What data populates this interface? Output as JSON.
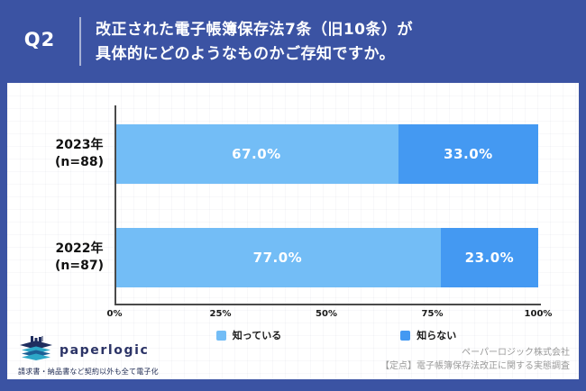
{
  "header": {
    "q_label": "Q2",
    "title_line1": "改正された電子帳簿保存法7条（旧10条）が",
    "title_line2": "具体的にどのようなものかご存知ですか。"
  },
  "chart_data": {
    "type": "bar",
    "orientation": "horizontal",
    "stacked": true,
    "categories": [
      {
        "label": "2023年",
        "sub": "(n=88)"
      },
      {
        "label": "2022年",
        "sub": "(n=87)"
      }
    ],
    "series": [
      {
        "name": "知っている",
        "color": "#73bdf6",
        "values": [
          67.0,
          77.0
        ]
      },
      {
        "name": "知らない",
        "color": "#4499f2",
        "values": [
          33.0,
          23.0
        ]
      }
    ],
    "xlim": [
      0,
      100
    ],
    "x_ticks": [
      "0%",
      "25%",
      "50%",
      "75%",
      "100%"
    ],
    "value_suffix": "%",
    "value_decimals": 1,
    "legend_position": "bottom",
    "grid": false
  },
  "footer": {
    "logo_text": "paperlogic",
    "logo_tagline": "請求書・納品書など契約以外も全て電子化",
    "credit_line1": "ペーパーロジック株式会社",
    "credit_line2": "【定点】電子帳簿保存法改正に関する実態調査"
  },
  "colors": {
    "page_background": "#3b53a3",
    "card_background": "#ffffff",
    "axis": "#4a4a4a",
    "bar_value_text": "#ffffff",
    "credit_text": "#999999"
  }
}
